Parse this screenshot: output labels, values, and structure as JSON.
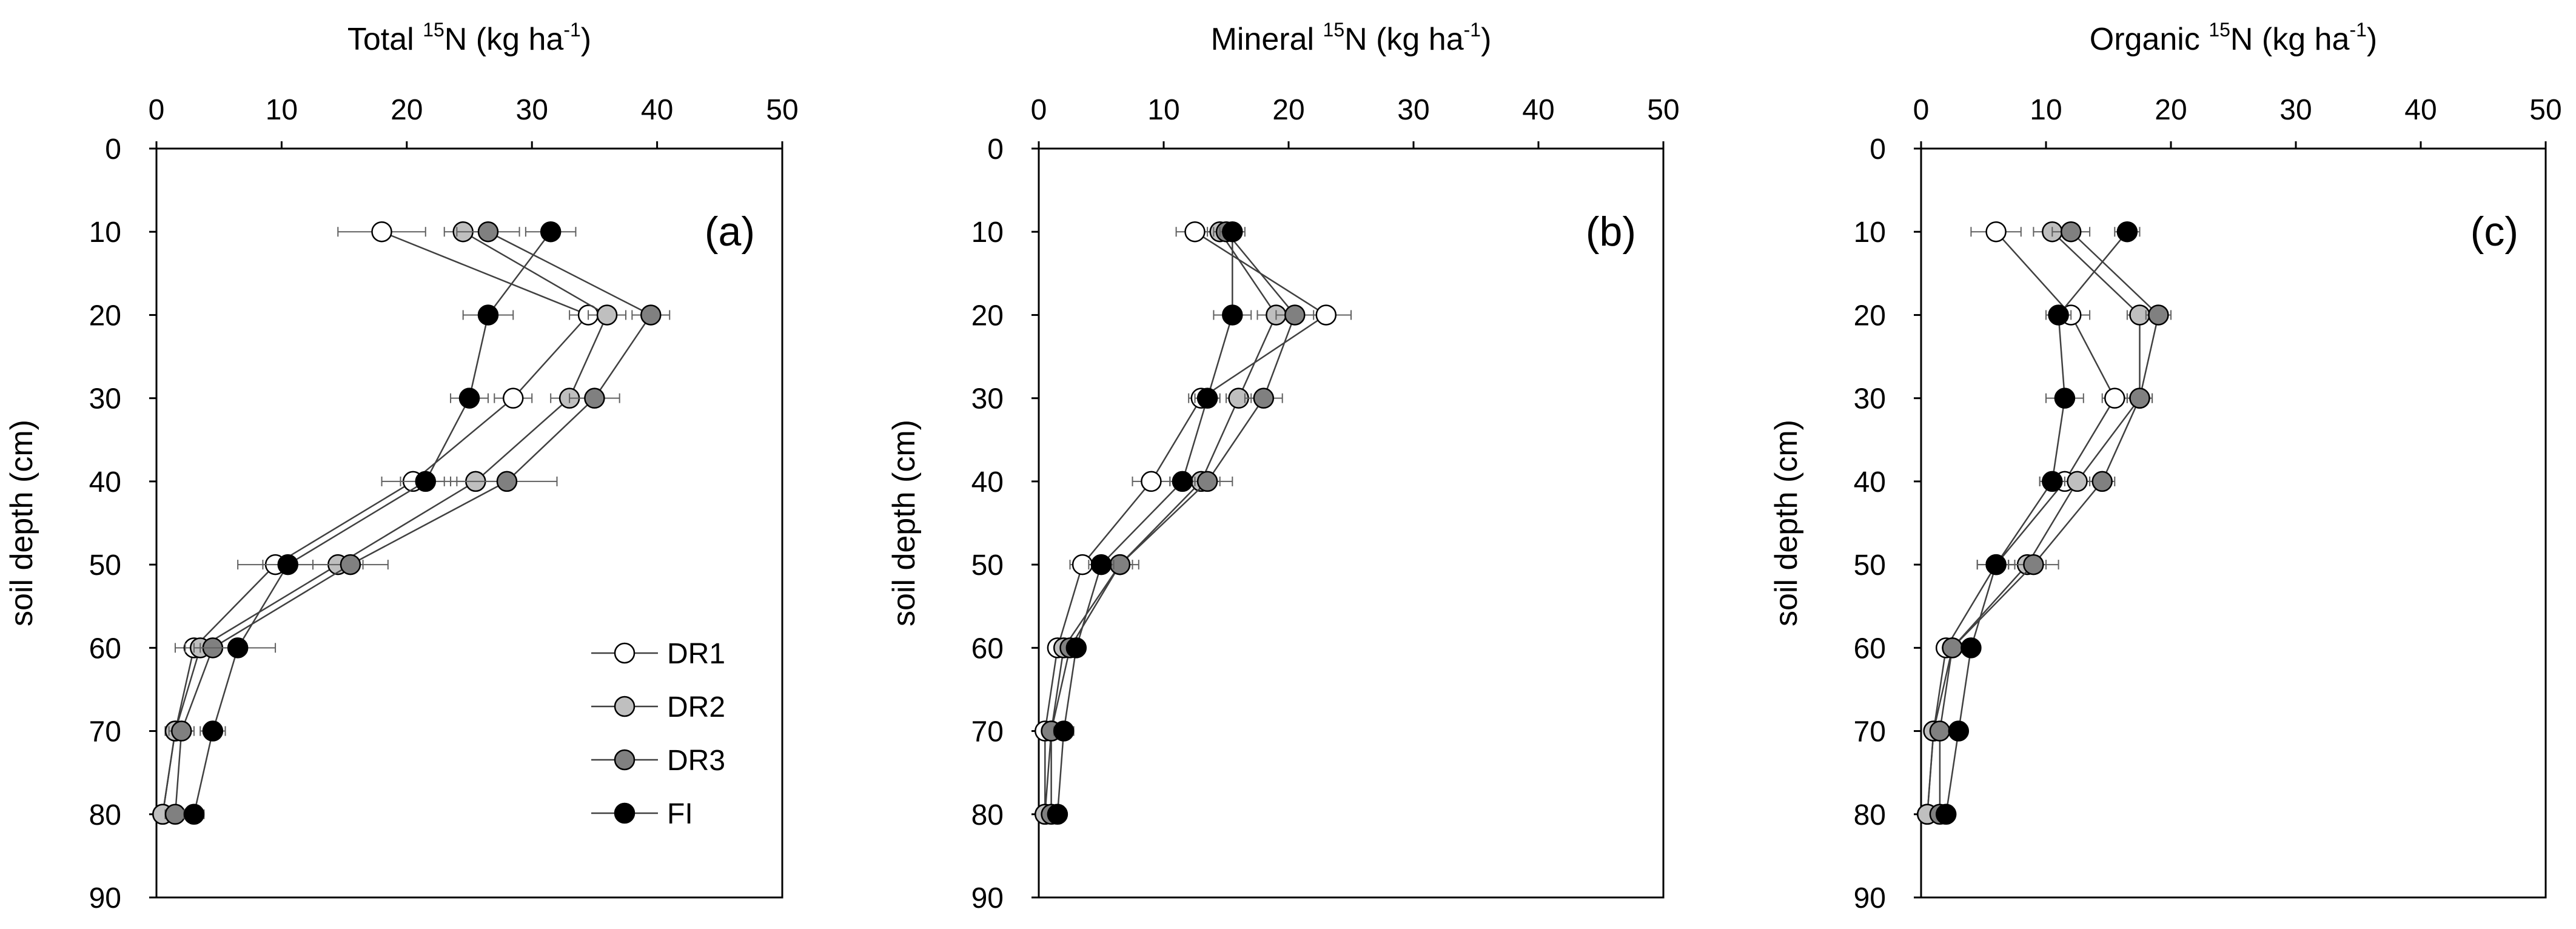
{
  "colors": {
    "DR1": "#ffffff",
    "DR2": "#bfbfbf",
    "DR3": "#808080",
    "FI": "#000000",
    "line": "#404040",
    "errorbar": "#606060"
  },
  "legend": [
    "DR1",
    "DR2",
    "DR3",
    "FI"
  ],
  "chart_data": [
    {
      "type": "line",
      "panel_label": "(a)",
      "title_prefix": "Total ",
      "title_sup": "15",
      "title_main": "N (kg ha",
      "title_unit_sup": "-1",
      "title_suffix": ")",
      "xlabel": "Total 15N (kg ha-1)",
      "ylabel": "soil depth (cm)",
      "xlim": [
        0,
        50
      ],
      "ylim": [
        90,
        0
      ],
      "x_ticks": [
        0,
        10,
        20,
        30,
        40,
        50
      ],
      "y_ticks": [
        0,
        10,
        20,
        30,
        40,
        50,
        60,
        70,
        80,
        90
      ],
      "depth": [
        10,
        20,
        30,
        40,
        50,
        60,
        70,
        80
      ],
      "series": [
        {
          "name": "DR1",
          "values": [
            18,
            34.5,
            28.5,
            20.5,
            9.5,
            3,
            1.5,
            0.5
          ],
          "errors": [
            3.5,
            1.5,
            1.5,
            2.5,
            3.0,
            1.5,
            0.8,
            0.5
          ]
        },
        {
          "name": "DR2",
          "values": [
            24.5,
            36,
            33,
            25.5,
            14.5,
            3.5,
            1.5,
            0.5
          ],
          "errors": [
            1.5,
            1.5,
            1.5,
            2.0,
            2.0,
            1.2,
            0.8,
            0.5
          ]
        },
        {
          "name": "DR3",
          "values": [
            26.5,
            39.5,
            35,
            28,
            15.5,
            4.5,
            2,
            1.5
          ],
          "errors": [
            2.5,
            1.5,
            2.0,
            4.0,
            3.0,
            1.5,
            1.0,
            0.8
          ]
        },
        {
          "name": "FI",
          "values": [
            31.5,
            26.5,
            25,
            21.5,
            10.5,
            6.5,
            4.5,
            3
          ],
          "errors": [
            2.0,
            2.0,
            1.5,
            2.0,
            2.0,
            3.0,
            1.0,
            0.8
          ]
        }
      ]
    },
    {
      "type": "line",
      "panel_label": "(b)",
      "title_prefix": "Mineral ",
      "title_sup": "15",
      "title_main": "N (kg ha",
      "title_unit_sup": "-1",
      "title_suffix": ")",
      "xlabel": "Mineral 15N (kg ha-1)",
      "ylabel": "soil depth (cm)",
      "xlim": [
        0,
        50
      ],
      "ylim": [
        90,
        0
      ],
      "x_ticks": [
        0,
        10,
        20,
        30,
        40,
        50
      ],
      "y_ticks": [
        0,
        10,
        20,
        30,
        40,
        50,
        60,
        70,
        80,
        90
      ],
      "depth": [
        10,
        20,
        30,
        40,
        50,
        60,
        70,
        80
      ],
      "series": [
        {
          "name": "DR1",
          "values": [
            12.5,
            23,
            13,
            9,
            3.5,
            1.5,
            0.5,
            0.5
          ],
          "errors": [
            1.5,
            2.0,
            1.0,
            1.5,
            1.0,
            0.6,
            0.4,
            0.3
          ]
        },
        {
          "name": "DR2",
          "values": [
            14.5,
            19,
            16,
            13,
            6.5,
            2,
            1,
            0.5
          ],
          "errors": [
            1.0,
            1.5,
            1.0,
            1.5,
            1.0,
            0.6,
            0.4,
            0.3
          ]
        },
        {
          "name": "DR3",
          "values": [
            15,
            20.5,
            18,
            13.5,
            6.5,
            2.5,
            1,
            1
          ],
          "errors": [
            1.0,
            1.5,
            1.5,
            2.0,
            1.5,
            0.6,
            0.4,
            0.3
          ]
        },
        {
          "name": "FI",
          "values": [
            15.5,
            15.5,
            13.5,
            11.5,
            5,
            3,
            2,
            1.5
          ],
          "errors": [
            1.0,
            1.5,
            1.0,
            1.0,
            1.0,
            0.6,
            0.8,
            0.4
          ]
        }
      ]
    },
    {
      "type": "line",
      "panel_label": "(c)",
      "title_prefix": "Organic ",
      "title_sup": "15",
      "title_main": "N (kg ha",
      "title_unit_sup": "-1",
      "title_suffix": ")",
      "xlabel": "Organic 15N (kg ha-1)",
      "ylabel": "soil depth (cm)",
      "xlim": [
        0,
        50
      ],
      "ylim": [
        90,
        0
      ],
      "x_ticks": [
        0,
        10,
        20,
        30,
        40,
        50
      ],
      "y_ticks": [
        0,
        10,
        20,
        30,
        40,
        50,
        60,
        70,
        80,
        90
      ],
      "depth": [
        10,
        20,
        30,
        40,
        50,
        60,
        70,
        80
      ],
      "series": [
        {
          "name": "DR1",
          "values": [
            6,
            12,
            15.5,
            11.5,
            6,
            2,
            1,
            0.5
          ],
          "errors": [
            2.0,
            1.5,
            1.0,
            2.0,
            1.5,
            0.6,
            0.4,
            0.3
          ]
        },
        {
          "name": "DR2",
          "values": [
            10.5,
            17.5,
            17.5,
            12.5,
            8.5,
            2.5,
            1,
            0.5
          ],
          "errors": [
            1.5,
            1.0,
            1.0,
            1.5,
            1.5,
            0.6,
            0.4,
            0.3
          ]
        },
        {
          "name": "DR3",
          "values": [
            12,
            19,
            17.5,
            14.5,
            9,
            2.5,
            1.5,
            1.5
          ],
          "errors": [
            1.5,
            1.0,
            1.0,
            1.0,
            2.0,
            0.6,
            0.4,
            0.3
          ]
        },
        {
          "name": "FI",
          "values": [
            16.5,
            11,
            11.5,
            10.5,
            6,
            4,
            3,
            2
          ],
          "errors": [
            1.0,
            1.0,
            1.5,
            1.0,
            1.5,
            0.6,
            0.5,
            0.4
          ]
        }
      ]
    }
  ]
}
